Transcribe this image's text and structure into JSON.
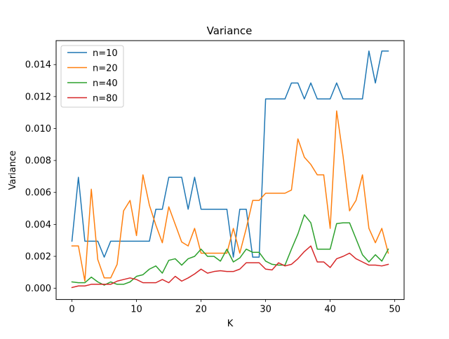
{
  "chart_data": {
    "type": "line",
    "title": "Variance",
    "xlabel": "K",
    "ylabel": "Variance",
    "xlim": [
      -2.45,
      51.45
    ],
    "ylim": [
      -0.0007,
      0.0155
    ],
    "xticks": [
      0,
      10,
      20,
      30,
      40,
      50
    ],
    "xtick_labels": [
      "0",
      "10",
      "20",
      "30",
      "40",
      "50"
    ],
    "yticks": [
      0.0,
      0.002,
      0.004,
      0.006,
      0.008,
      0.01,
      0.012,
      0.014
    ],
    "ytick_labels": [
      "0.000",
      "0.002",
      "0.004",
      "0.006",
      "0.008",
      "0.010",
      "0.012",
      "0.014"
    ],
    "grid": false,
    "legend_position": "top-left",
    "x": [
      0,
      1,
      2,
      3,
      4,
      5,
      6,
      7,
      8,
      9,
      10,
      11,
      12,
      13,
      14,
      15,
      16,
      17,
      18,
      19,
      20,
      21,
      22,
      23,
      24,
      25,
      26,
      27,
      28,
      29,
      30,
      31,
      32,
      33,
      34,
      35,
      36,
      37,
      38,
      39,
      40,
      41,
      42,
      43,
      44,
      45,
      46,
      47,
      48,
      49
    ],
    "series": [
      {
        "name": "n=10",
        "color": "#1f77b4",
        "values": [
          0.00295,
          0.00695,
          0.00295,
          0.00295,
          0.00295,
          0.00195,
          0.00295,
          0.00295,
          0.00295,
          0.00295,
          0.00295,
          0.00295,
          0.00295,
          0.00495,
          0.00495,
          0.00695,
          0.00695,
          0.00695,
          0.00495,
          0.00695,
          0.00495,
          0.00495,
          0.00495,
          0.00495,
          0.00495,
          0.00195,
          0.00495,
          0.00495,
          0.00195,
          0.00195,
          0.01185,
          0.01185,
          0.01185,
          0.01185,
          0.01285,
          0.01285,
          0.01185,
          0.01285,
          0.01185,
          0.01185,
          0.01185,
          0.01285,
          0.01185,
          0.01185,
          0.01185,
          0.01185,
          0.01485,
          0.01285,
          0.01485,
          0.01485
        ]
      },
      {
        "name": "n=20",
        "color": "#ff7f0e",
        "values": [
          0.00265,
          0.00265,
          0.00045,
          0.0062,
          0.0018,
          0.00065,
          0.00065,
          0.0015,
          0.00485,
          0.0055,
          0.0033,
          0.0071,
          0.0052,
          0.00395,
          0.00285,
          0.0051,
          0.004,
          0.0029,
          0.00265,
          0.00375,
          0.0022,
          0.0022,
          0.0022,
          0.0022,
          0.0022,
          0.00375,
          0.0022,
          0.00375,
          0.0055,
          0.0055,
          0.00595,
          0.00595,
          0.00595,
          0.00595,
          0.00615,
          0.00935,
          0.0082,
          0.00775,
          0.0071,
          0.0071,
          0.00375,
          0.0111,
          0.00825,
          0.00485,
          0.0055,
          0.0071,
          0.00375,
          0.00285,
          0.00375,
          0.0022
        ]
      },
      {
        "name": "n=40",
        "color": "#2ca02c",
        "values": [
          0.0004,
          0.00035,
          0.00035,
          0.0007,
          0.0004,
          0.0002,
          0.0004,
          0.00025,
          0.00025,
          0.0004,
          0.00075,
          0.00085,
          0.0012,
          0.0014,
          0.00095,
          0.00175,
          0.00185,
          0.00145,
          0.00185,
          0.002,
          0.00245,
          0.002,
          0.002,
          0.0017,
          0.00245,
          0.00165,
          0.0019,
          0.00245,
          0.00225,
          0.00225,
          0.0017,
          0.0015,
          0.00145,
          0.00145,
          0.00245,
          0.0034,
          0.0046,
          0.0041,
          0.00245,
          0.00245,
          0.00245,
          0.00405,
          0.0041,
          0.0041,
          0.0031,
          0.0021,
          0.00165,
          0.0021,
          0.0017,
          0.00245
        ]
      },
      {
        "name": "n=80",
        "color": "#d62728",
        "values": [
          5e-05,
          0.00015,
          0.00015,
          0.00025,
          0.00025,
          0.00025,
          0.00025,
          0.00045,
          0.00055,
          0.00065,
          0.00055,
          0.00035,
          0.00035,
          0.00035,
          0.00055,
          0.00035,
          0.00075,
          0.00045,
          0.00065,
          0.0009,
          0.0012,
          0.00095,
          0.00105,
          0.0011,
          0.00105,
          0.00105,
          0.0012,
          0.0016,
          0.0016,
          0.0016,
          0.0012,
          0.00115,
          0.0016,
          0.0014,
          0.0015,
          0.00185,
          0.0023,
          0.00265,
          0.00165,
          0.00165,
          0.0013,
          0.00185,
          0.002,
          0.0022,
          0.00185,
          0.00165,
          0.00145,
          0.00145,
          0.0014,
          0.0015
        ]
      }
    ]
  }
}
